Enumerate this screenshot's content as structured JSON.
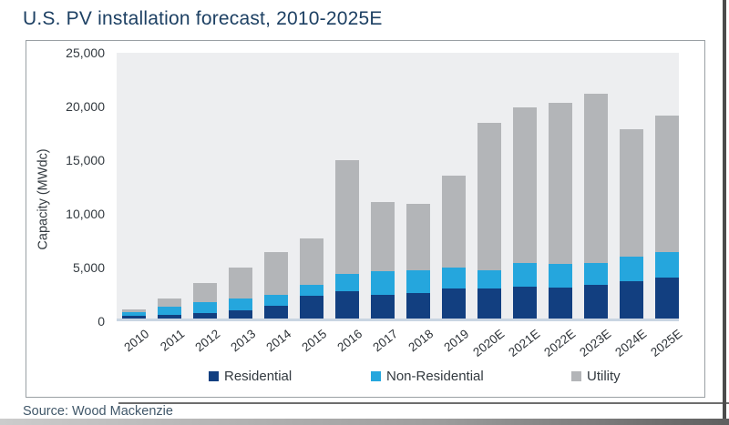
{
  "page": {
    "title": "U.S. PV installation forecast, 2010-2025E",
    "source": "Source: Wood Mackenzie"
  },
  "chart_data": {
    "type": "bar",
    "stacked": true,
    "title": "U.S. PV installation forecast, 2010-2025E",
    "xlabel": "",
    "ylabel": "Capacity (MWdc)",
    "ylim": [
      0,
      25000
    ],
    "yticks": [
      0,
      5000,
      10000,
      15000,
      20000,
      25000
    ],
    "ytick_labels": [
      "0",
      "5,000",
      "10,000",
      "15,000",
      "20,000",
      "25,000"
    ],
    "grid": false,
    "legend_position": "bottom",
    "plot_background": "#edeef0",
    "categories": [
      "2010",
      "2011",
      "2012",
      "2013",
      "2014",
      "2015",
      "2016",
      "2017",
      "2018",
      "2019",
      "2020E",
      "2021E",
      "2022E",
      "2023E",
      "2024E",
      "2025E"
    ],
    "series": [
      {
        "name": "Residential",
        "color": "#123f80",
        "values": [
          250,
          300,
          490,
          790,
          1230,
          2100,
          2580,
          2230,
          2390,
          2810,
          2800,
          2950,
          2900,
          3100,
          3500,
          3800
        ]
      },
      {
        "name": "Non-Residential",
        "color": "#25a6dd",
        "values": [
          340,
          800,
          1040,
          1110,
          1010,
          1040,
          1590,
          2150,
          2090,
          1940,
          1700,
          2250,
          2150,
          2050,
          2250,
          2400
        ]
      },
      {
        "name": "Utility",
        "color": "#b3b5b8",
        "values": [
          260,
          780,
          1800,
          2850,
          3930,
          4280,
          10590,
          6440,
          6230,
          8580,
          13700,
          14500,
          15000,
          15800,
          11850,
          12700
        ]
      }
    ],
    "totals": [
      850,
      1880,
      3330,
      4750,
      6170,
      7420,
      14760,
      10820,
      10710,
      13330,
      18200,
      19700,
      20050,
      20950,
      17600,
      18900
    ]
  },
  "colors": {
    "title_text": "#1d4063",
    "axis_text": "#333a40",
    "residential": "#123f80",
    "non_residential": "#25a6dd",
    "utility": "#b3b5b8"
  }
}
